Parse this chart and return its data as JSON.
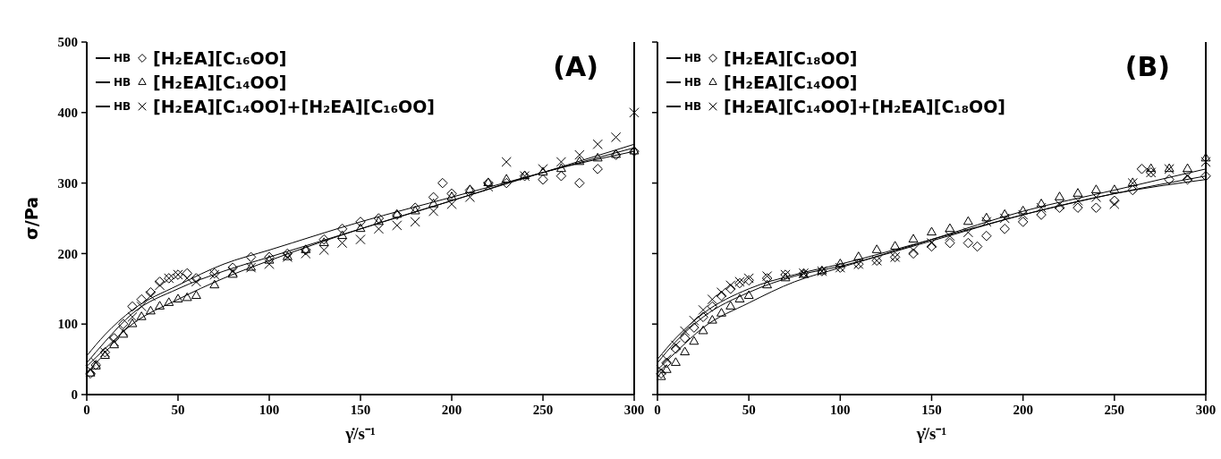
{
  "chart_data": [
    {
      "type": "scatter",
      "xlabel": "γ̇/s⁻¹",
      "ylabel": "σ/Pa",
      "xlim": [
        0,
        300
      ],
      "ylim": [
        0,
        500
      ],
      "xticks": [
        0,
        50,
        100,
        150,
        200,
        250,
        300
      ],
      "yticks": [
        0,
        100,
        200,
        300,
        400,
        500
      ],
      "legend": "top left",
      "annotations": [
        "(A)"
      ],
      "series": [
        {
          "name": "HB",
          "type": "line",
          "color": "#000000",
          "x": [
            0,
            10,
            25,
            50,
            75,
            100,
            150,
            200,
            250,
            300
          ],
          "values": [
            55,
            85,
            120,
            155,
            185,
            205,
            245,
            280,
            315,
            350
          ]
        },
        {
          "name": "[H₂EA][C₁₆OO]",
          "type": "scatter",
          "marker": "diamond",
          "color": "#000000",
          "x": [
            2,
            5,
            10,
            15,
            20,
            25,
            30,
            35,
            40,
            45,
            50,
            55,
            60,
            70,
            80,
            90,
            100,
            110,
            120,
            130,
            140,
            150,
            160,
            170,
            180,
            190,
            195,
            200,
            210,
            220,
            230,
            240,
            250,
            260,
            270,
            280,
            290,
            300
          ],
          "values": [
            30,
            42,
            60,
            80,
            100,
            125,
            135,
            145,
            160,
            165,
            170,
            172,
            165,
            172,
            180,
            195,
            195,
            200,
            205,
            220,
            235,
            245,
            250,
            255,
            265,
            280,
            300,
            285,
            290,
            300,
            300,
            310,
            305,
            310,
            300,
            320,
            340,
            345
          ]
        },
        {
          "name": "HB",
          "type": "line",
          "color": "#000000",
          "x": [
            0,
            10,
            25,
            50,
            75,
            100,
            150,
            200,
            250,
            300
          ],
          "values": [
            40,
            65,
            100,
            135,
            165,
            190,
            235,
            275,
            315,
            345
          ]
        },
        {
          "name": "[H₂EA][C₁₄OO]",
          "type": "scatter",
          "marker": "triangle",
          "color": "#000000",
          "x": [
            2,
            5,
            10,
            15,
            20,
            25,
            30,
            35,
            40,
            45,
            50,
            55,
            60,
            70,
            80,
            90,
            100,
            110,
            120,
            130,
            140,
            150,
            160,
            170,
            180,
            190,
            200,
            210,
            220,
            230,
            240,
            250,
            260,
            270,
            280,
            290,
            300
          ],
          "values": [
            30,
            40,
            55,
            70,
            85,
            100,
            110,
            118,
            125,
            130,
            135,
            137,
            140,
            155,
            170,
            180,
            190,
            195,
            205,
            215,
            225,
            235,
            245,
            255,
            260,
            270,
            280,
            290,
            300,
            305,
            310,
            315,
            320,
            330,
            335,
            340,
            345
          ]
        },
        {
          "name": "HB",
          "type": "line",
          "color": "#000000",
          "x": [
            0,
            10,
            25,
            50,
            75,
            100,
            150,
            200,
            250,
            300
          ],
          "values": [
            45,
            75,
            115,
            150,
            175,
            195,
            235,
            275,
            315,
            355
          ]
        },
        {
          "name": "[H₂EA][C₁₄OO]+[H₂EA][C₁₆OO]",
          "type": "scatter",
          "marker": "cross",
          "color": "#000000",
          "x": [
            2,
            5,
            10,
            15,
            20,
            25,
            30,
            35,
            40,
            45,
            50,
            55,
            60,
            70,
            80,
            90,
            100,
            110,
            120,
            130,
            140,
            150,
            160,
            170,
            180,
            190,
            200,
            210,
            220,
            230,
            240,
            250,
            260,
            270,
            280,
            290,
            300
          ],
          "values": [
            35,
            45,
            60,
            75,
            90,
            110,
            125,
            140,
            155,
            165,
            170,
            165,
            160,
            170,
            175,
            180,
            185,
            195,
            200,
            205,
            215,
            220,
            235,
            240,
            245,
            260,
            270,
            280,
            295,
            330,
            310,
            320,
            330,
            340,
            355,
            365,
            400
          ]
        }
      ]
    },
    {
      "type": "scatter",
      "xlabel": "γ̇/s⁻¹",
      "xlim": [
        0,
        300
      ],
      "ylim": [
        0,
        500
      ],
      "xticks": [
        0,
        50,
        100,
        150,
        200,
        250,
        300
      ],
      "yticks": [
        0,
        100,
        200,
        300,
        400,
        500
      ],
      "tick_labels": "x",
      "legend": "top left",
      "annotations": [
        "(B)"
      ],
      "series": [
        {
          "name": "HB",
          "type": "line",
          "color": "#000000",
          "x": [
            0,
            10,
            25,
            50,
            75,
            100,
            150,
            200,
            250,
            300
          ],
          "values": [
            50,
            80,
            115,
            150,
            170,
            185,
            220,
            255,
            285,
            310
          ]
        },
        {
          "name": "[H₂EA][C₁₈OO]",
          "type": "scatter",
          "marker": "diamond",
          "color": "#000000",
          "x": [
            2,
            5,
            10,
            15,
            20,
            25,
            30,
            35,
            40,
            45,
            50,
            60,
            70,
            80,
            90,
            100,
            110,
            120,
            130,
            140,
            150,
            160,
            170,
            175,
            180,
            190,
            200,
            210,
            220,
            230,
            240,
            250,
            260,
            265,
            270,
            280,
            290,
            300
          ],
          "values": [
            30,
            45,
            65,
            80,
            95,
            110,
            125,
            140,
            150,
            158,
            162,
            165,
            170,
            172,
            175,
            180,
            185,
            190,
            195,
            200,
            210,
            215,
            215,
            210,
            225,
            235,
            245,
            255,
            265,
            265,
            265,
            275,
            290,
            320,
            315,
            305,
            305,
            310
          ]
        },
        {
          "name": "HB",
          "type": "line",
          "color": "#000000",
          "x": [
            0,
            10,
            25,
            50,
            75,
            100,
            150,
            200,
            250,
            300
          ],
          "values": [
            35,
            60,
            95,
            130,
            160,
            180,
            220,
            260,
            290,
            320
          ]
        },
        {
          "name": "[H₂EA][C₁₄OO]",
          "type": "scatter",
          "marker": "triangle",
          "color": "#000000",
          "x": [
            2,
            5,
            10,
            15,
            20,
            25,
            30,
            35,
            40,
            45,
            50,
            60,
            70,
            80,
            90,
            100,
            110,
            120,
            130,
            140,
            150,
            160,
            170,
            180,
            190,
            200,
            210,
            220,
            230,
            240,
            250,
            260,
            270,
            280,
            290,
            300
          ],
          "values": [
            25,
            35,
            45,
            60,
            75,
            90,
            105,
            115,
            125,
            135,
            140,
            155,
            165,
            170,
            175,
            185,
            195,
            205,
            210,
            220,
            230,
            235,
            245,
            250,
            255,
            260,
            270,
            280,
            285,
            290,
            290,
            300,
            320,
            320,
            320,
            335
          ]
        },
        {
          "name": "HB",
          "type": "line",
          "color": "#000000",
          "x": [
            0,
            10,
            25,
            50,
            75,
            100,
            150,
            200,
            250,
            300
          ],
          "values": [
            45,
            75,
            110,
            145,
            168,
            182,
            218,
            255,
            285,
            305
          ]
        },
        {
          "name": "[H₂EA][C₁₄OO]+[H₂EA][C₁₈OO]",
          "type": "scatter",
          "marker": "cross",
          "color": "#000000",
          "x": [
            2,
            5,
            10,
            15,
            20,
            25,
            30,
            35,
            40,
            45,
            50,
            60,
            70,
            80,
            90,
            100,
            110,
            120,
            130,
            140,
            150,
            160,
            170,
            180,
            190,
            200,
            210,
            220,
            230,
            240,
            250,
            260,
            270,
            280,
            290,
            300
          ],
          "values": [
            35,
            50,
            70,
            90,
            105,
            120,
            135,
            145,
            155,
            160,
            165,
            168,
            170,
            172,
            175,
            180,
            185,
            190,
            195,
            205,
            215,
            225,
            230,
            245,
            250,
            255,
            265,
            270,
            275,
            280,
            270,
            300,
            315,
            320,
            310,
            330
          ]
        }
      ]
    }
  ]
}
